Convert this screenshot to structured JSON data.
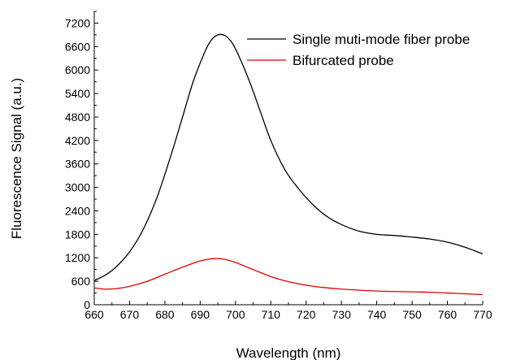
{
  "chart_data": {
    "type": "line",
    "title": "",
    "xlabel": "Wavelength (nm)",
    "ylabel": "Fluorescence Signal (a.u.)",
    "xlim": [
      660,
      770
    ],
    "ylim": [
      0,
      7500
    ],
    "x_ticks": [
      "660",
      "670",
      "680",
      "690",
      "700",
      "710",
      "720",
      "730",
      "740",
      "750",
      "760",
      "770"
    ],
    "y_ticks": [
      "0",
      "600",
      "1200",
      "1800",
      "2400",
      "3000",
      "3600",
      "4200",
      "4800",
      "5400",
      "6000",
      "6600",
      "7200"
    ],
    "grid": false,
    "legend_position": "top-right",
    "series": [
      {
        "name": "Single muti-mode fiber probe",
        "color": "#000000",
        "x": [
          660,
          663,
          666,
          670,
          674,
          678,
          682,
          685,
          688,
          691,
          693,
          695,
          697,
          699,
          701,
          704,
          707,
          710,
          714,
          718,
          722,
          726,
          730,
          735,
          740,
          745,
          750,
          755,
          760,
          765,
          770
        ],
        "y": [
          620,
          750,
          950,
          1350,
          1950,
          2800,
          3900,
          4800,
          5700,
          6400,
          6750,
          6900,
          6880,
          6700,
          6350,
          5700,
          4950,
          4200,
          3450,
          2950,
          2550,
          2250,
          2050,
          1880,
          1800,
          1770,
          1730,
          1680,
          1600,
          1470,
          1300
        ]
      },
      {
        "name": "Bifurcated probe",
        "color": "#e00000",
        "x": [
          660,
          663,
          666,
          670,
          675,
          680,
          685,
          690,
          694,
          697,
          700,
          705,
          710,
          715,
          720,
          725,
          730,
          740,
          750,
          755,
          760,
          765,
          770
        ],
        "y": [
          430,
          400,
          410,
          470,
          600,
          780,
          960,
          1120,
          1180,
          1160,
          1080,
          900,
          720,
          590,
          500,
          440,
          400,
          350,
          330,
          320,
          300,
          280,
          260
        ]
      }
    ]
  }
}
